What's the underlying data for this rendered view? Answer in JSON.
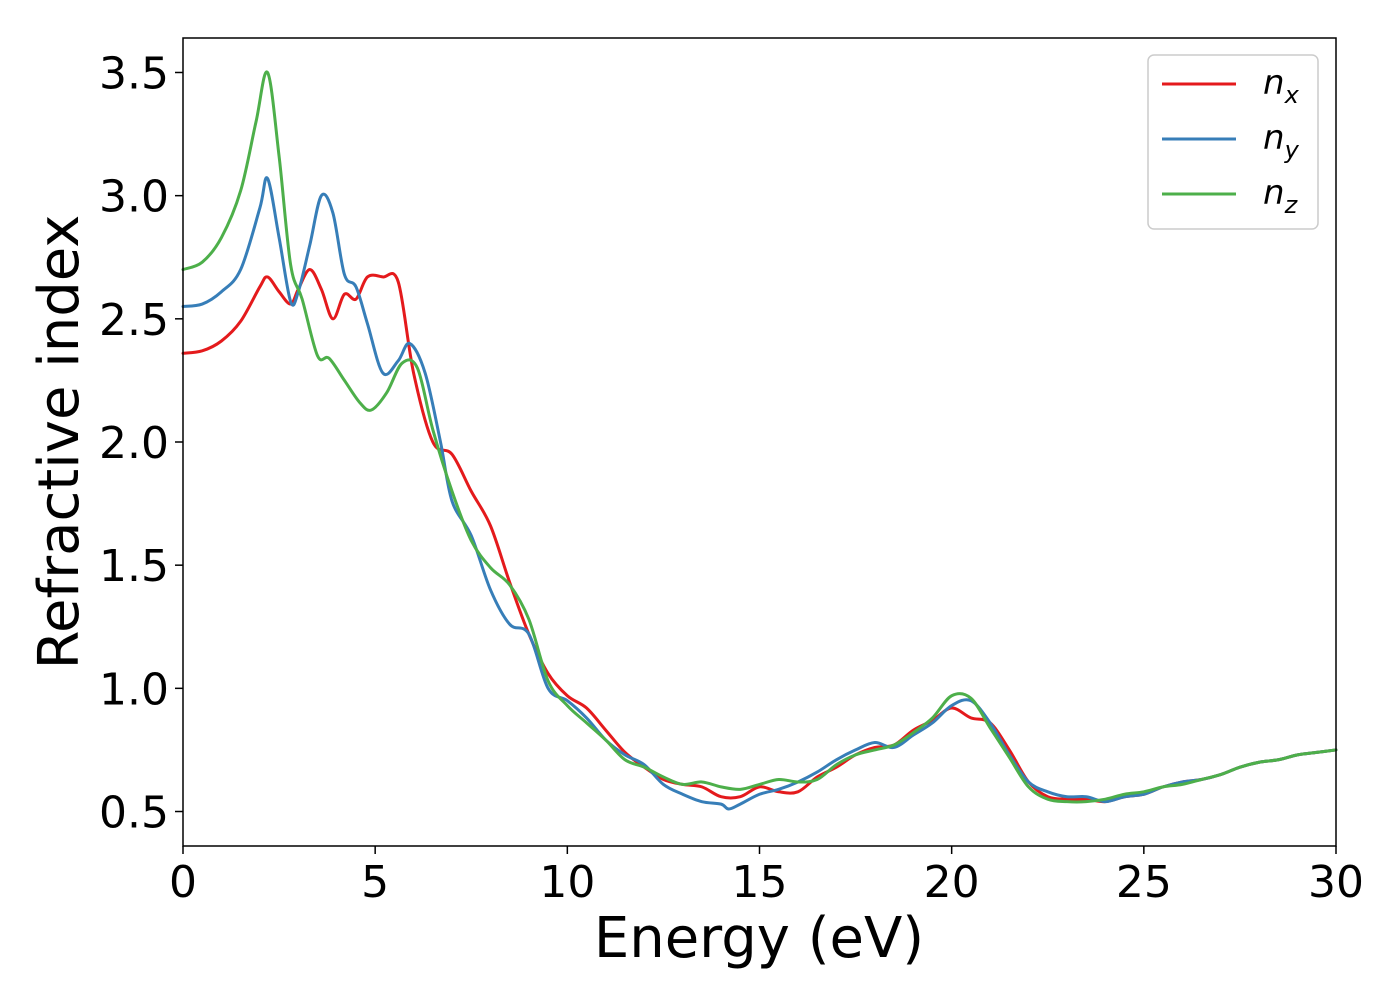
{
  "chart_data": {
    "type": "line",
    "title": "",
    "xlabel": "Energy (eV)",
    "ylabel": "Refractive index",
    "xlim": [
      0,
      30
    ],
    "ylim": [
      0.36,
      3.64
    ],
    "xticks": [
      0,
      5,
      10,
      15,
      20,
      25,
      30
    ],
    "yticks": [
      0.5,
      1.0,
      1.5,
      2.0,
      2.5,
      3.0,
      3.5
    ],
    "xtick_labels": [
      "0",
      "5",
      "10",
      "15",
      "20",
      "25",
      "30"
    ],
    "ytick_labels": [
      "0.5",
      "1.0",
      "1.5",
      "2.0",
      "2.5",
      "3.0",
      "3.5"
    ],
    "grid": false,
    "legend_position": "top-right",
    "series": [
      {
        "name": "n",
        "subscript": "x",
        "color": "#e41a1c",
        "x": [
          0,
          0.5,
          1,
          1.5,
          2,
          2.2,
          2.5,
          2.8,
          3,
          3.3,
          3.6,
          3.9,
          4.2,
          4.5,
          4.8,
          5.2,
          5.6,
          6,
          6.5,
          7,
          7.5,
          8,
          8.5,
          9,
          9.5,
          10,
          10.5,
          11,
          11.5,
          12,
          12.5,
          13,
          13.5,
          14,
          14.5,
          15,
          15.5,
          16,
          16.5,
          17,
          17.5,
          18,
          18.5,
          19,
          19.5,
          20,
          20.5,
          21,
          21.5,
          22,
          22.5,
          23,
          23.5,
          24,
          24.5,
          25,
          25.5,
          26,
          26.5,
          27,
          27.5,
          28,
          28.5,
          29,
          29.5,
          30
        ],
        "y": [
          2.36,
          2.37,
          2.41,
          2.49,
          2.63,
          2.67,
          2.61,
          2.56,
          2.62,
          2.7,
          2.62,
          2.5,
          2.6,
          2.58,
          2.67,
          2.67,
          2.65,
          2.28,
          2.0,
          1.95,
          1.8,
          1.66,
          1.43,
          1.22,
          1.06,
          0.97,
          0.92,
          0.83,
          0.74,
          0.68,
          0.63,
          0.61,
          0.6,
          0.56,
          0.56,
          0.6,
          0.58,
          0.58,
          0.64,
          0.68,
          0.73,
          0.76,
          0.77,
          0.83,
          0.87,
          0.92,
          0.88,
          0.86,
          0.75,
          0.62,
          0.56,
          0.55,
          0.55,
          0.54,
          0.56,
          0.57,
          0.6,
          0.62,
          0.63,
          0.65,
          0.68,
          0.7,
          0.71,
          0.73,
          0.74,
          0.75
        ]
      },
      {
        "name": "n",
        "subscript": "y",
        "color": "#377eb8",
        "x": [
          0,
          0.5,
          1,
          1.5,
          2,
          2.2,
          2.5,
          2.8,
          3,
          3.3,
          3.6,
          3.9,
          4.2,
          4.5,
          4.8,
          5.2,
          5.6,
          5.9,
          6.3,
          6.7,
          7,
          7.5,
          8,
          8.5,
          9,
          9.5,
          10,
          10.5,
          11,
          11.5,
          12,
          12.5,
          13,
          13.5,
          14,
          14.2,
          14.5,
          15,
          15.5,
          16,
          16.5,
          17,
          17.5,
          18,
          18.5,
          19,
          19.5,
          20,
          20.5,
          21,
          21.5,
          22,
          22.5,
          23,
          23.5,
          24,
          24.5,
          25,
          25.5,
          26,
          26.5,
          27,
          27.5,
          28,
          28.5,
          29,
          29.5,
          30
        ],
        "y": [
          2.55,
          2.56,
          2.61,
          2.7,
          2.95,
          3.07,
          2.83,
          2.57,
          2.61,
          2.8,
          3.0,
          2.93,
          2.68,
          2.63,
          2.48,
          2.28,
          2.33,
          2.4,
          2.28,
          2.0,
          1.76,
          1.62,
          1.4,
          1.26,
          1.22,
          1.0,
          0.95,
          0.88,
          0.79,
          0.73,
          0.69,
          0.61,
          0.57,
          0.54,
          0.53,
          0.51,
          0.53,
          0.57,
          0.59,
          0.62,
          0.66,
          0.71,
          0.75,
          0.78,
          0.76,
          0.81,
          0.86,
          0.93,
          0.95,
          0.86,
          0.73,
          0.62,
          0.58,
          0.56,
          0.56,
          0.54,
          0.56,
          0.57,
          0.6,
          0.62,
          0.63,
          0.65,
          0.68,
          0.7,
          0.71,
          0.73,
          0.74,
          0.75
        ]
      },
      {
        "name": "n",
        "subscript": "z",
        "color": "#4daf4a",
        "x": [
          0,
          0.5,
          1,
          1.5,
          1.9,
          2.2,
          2.5,
          2.8,
          3.1,
          3.5,
          3.8,
          4.2,
          4.6,
          4.9,
          5.3,
          5.7,
          6.1,
          6.5,
          7,
          7.5,
          8,
          8.5,
          9,
          9.5,
          10,
          10.5,
          11,
          11.5,
          12,
          12.5,
          13,
          13.5,
          14,
          14.5,
          15,
          15.5,
          16,
          16.5,
          17,
          17.5,
          18,
          18.5,
          19,
          19.5,
          20,
          20.5,
          21,
          21.5,
          22,
          22.5,
          23,
          23.5,
          24,
          24.5,
          25,
          25.5,
          26,
          26.5,
          27,
          27.5,
          28,
          28.5,
          29,
          29.5,
          30
        ],
        "y": [
          2.7,
          2.73,
          2.83,
          3.02,
          3.3,
          3.5,
          3.16,
          2.72,
          2.58,
          2.35,
          2.34,
          2.25,
          2.16,
          2.13,
          2.2,
          2.32,
          2.3,
          2.05,
          1.8,
          1.6,
          1.49,
          1.42,
          1.28,
          1.03,
          0.93,
          0.86,
          0.79,
          0.71,
          0.68,
          0.64,
          0.61,
          0.62,
          0.6,
          0.59,
          0.61,
          0.63,
          0.62,
          0.63,
          0.69,
          0.73,
          0.75,
          0.77,
          0.82,
          0.88,
          0.97,
          0.96,
          0.84,
          0.72,
          0.6,
          0.55,
          0.54,
          0.54,
          0.55,
          0.57,
          0.58,
          0.6,
          0.61,
          0.63,
          0.65,
          0.68,
          0.7,
          0.71,
          0.73,
          0.74,
          0.75
        ]
      }
    ]
  }
}
